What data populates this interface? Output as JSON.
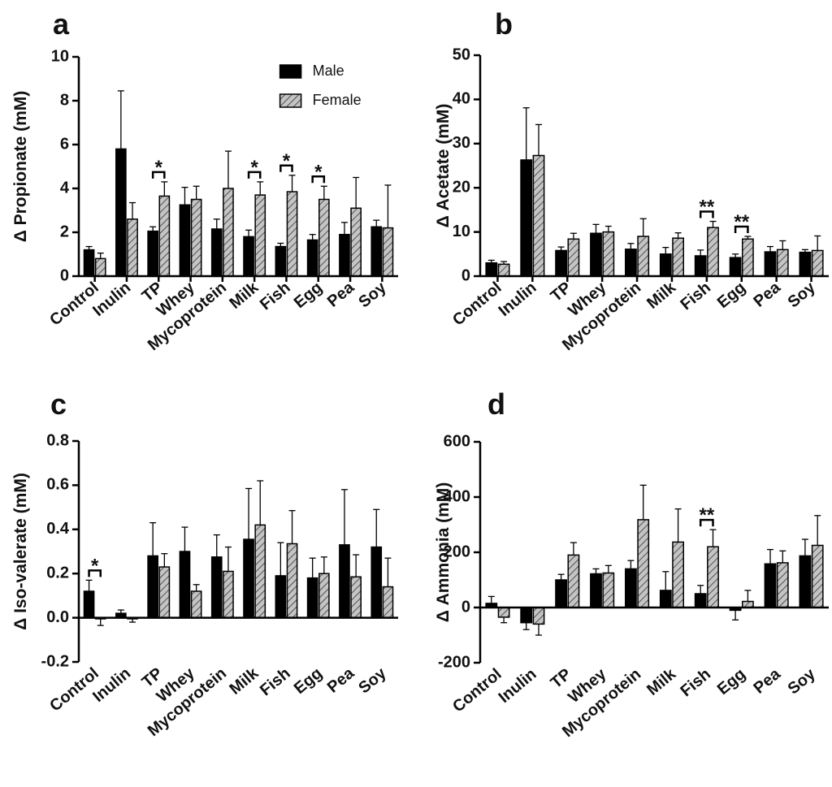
{
  "chart_data": [
    {
      "type": "bar",
      "title": "a",
      "y_label": "Δ Propionate (mM)",
      "categories": [
        "Control",
        "Inulin",
        "TP",
        "Whey",
        "Mycoprotein",
        "Milk",
        "Fish",
        "Egg",
        "Pea",
        "Soy"
      ],
      "series": [
        {
          "name": "Male",
          "color": "#000000",
          "values": [
            1.2,
            5.8,
            2.05,
            3.25,
            2.15,
            1.8,
            1.35,
            1.65,
            1.9,
            2.25
          ],
          "errors": [
            0.15,
            2.65,
            0.2,
            0.8,
            0.45,
            0.3,
            0.15,
            0.25,
            0.55,
            0.3
          ]
        },
        {
          "name": "Female",
          "color": "#b8b8b8",
          "hatch": true,
          "values": [
            0.8,
            2.6,
            3.65,
            3.5,
            4.0,
            3.7,
            3.85,
            3.5,
            3.1,
            2.2
          ],
          "errors": [
            0.25,
            0.75,
            0.65,
            0.6,
            1.7,
            0.6,
            0.75,
            0.6,
            1.4,
            1.95
          ]
        }
      ],
      "ylim": [
        0,
        10
      ],
      "yticks": [
        0,
        2,
        4,
        6,
        8,
        10
      ],
      "legend": "top",
      "annotations": [
        {
          "category": "TP",
          "label": "*"
        },
        {
          "category": "Milk",
          "label": "*"
        },
        {
          "category": "Fish",
          "label": "*"
        },
        {
          "category": "Egg",
          "label": "*"
        }
      ]
    },
    {
      "type": "bar",
      "title": "b",
      "y_label": "Δ Acetate (mM)",
      "categories": [
        "Control",
        "Inulin",
        "TP",
        "Whey",
        "Mycoprotein",
        "Milk",
        "Fish",
        "Egg",
        "Pea",
        "Soy"
      ],
      "series": [
        {
          "color": "#000000",
          "values": [
            3.0,
            26.3,
            5.8,
            9.7,
            6.1,
            5.0,
            4.6,
            4.2,
            5.5,
            5.4
          ],
          "errors": [
            0.6,
            11.8,
            0.8,
            2.0,
            1.3,
            1.5,
            1.3,
            0.8,
            1.2,
            0.6
          ]
        },
        {
          "color": "#b8b8b8",
          "hatch": true,
          "values": [
            2.7,
            27.3,
            8.4,
            10.0,
            9.0,
            8.6,
            11.0,
            8.4,
            6.0,
            5.8
          ],
          "errors": [
            0.6,
            7.0,
            1.3,
            1.3,
            4.0,
            1.2,
            1.4,
            0.6,
            2.0,
            3.3
          ]
        }
      ],
      "ylim": [
        0,
        50
      ],
      "yticks": [
        0,
        10,
        20,
        30,
        40,
        50
      ],
      "annotations": [
        {
          "category": "Fish",
          "label": "**"
        },
        {
          "category": "Egg",
          "label": "**"
        }
      ]
    },
    {
      "type": "bar",
      "title": "c",
      "y_label": "Δ Iso-valerate (mM)",
      "categories": [
        "Control",
        "Inulin",
        "TP",
        "Whey",
        "Mycoprotein",
        "Milk",
        "Fish",
        "Egg",
        "Pea",
        "Soy"
      ],
      "series": [
        {
          "color": "#000000",
          "values": [
            0.12,
            0.02,
            0.28,
            0.3,
            0.275,
            0.355,
            0.19,
            0.18,
            0.33,
            0.32
          ],
          "errors": [
            0.05,
            0.015,
            0.15,
            0.11,
            0.1,
            0.23,
            0.15,
            0.09,
            0.25,
            0.17
          ]
        },
        {
          "color": "#b8b8b8",
          "hatch": true,
          "values": [
            -0.005,
            -0.005,
            0.23,
            0.12,
            0.21,
            0.42,
            0.335,
            0.2,
            0.185,
            0.14
          ],
          "errors": [
            0.03,
            0.015,
            0.06,
            0.03,
            0.11,
            0.2,
            0.15,
            0.075,
            0.1,
            0.13
          ]
        }
      ],
      "ylim": [
        -0.2,
        0.8
      ],
      "yticks": [
        {
          "value": -0.2,
          "label": "-0.2"
        },
        {
          "value": 0,
          "label": "0.0"
        },
        0.2,
        0.4,
        0.6,
        0.8
      ],
      "annotations": [
        {
          "category": "Control",
          "label": "*"
        }
      ]
    },
    {
      "type": "bar",
      "title": "d",
      "y_label": "Δ Ammonia (mM)",
      "categories": [
        "Control",
        "Inulin",
        "TP",
        "Whey",
        "Mycoprotein",
        "Milk",
        "Fish",
        "Egg",
        "Pea",
        "Soy"
      ],
      "series": [
        {
          "color": "#000000",
          "values": [
            15,
            -55,
            100,
            122,
            140,
            62,
            50,
            -10,
            158,
            187
          ],
          "errors": [
            25,
            25,
            20,
            18,
            30,
            68,
            30,
            35,
            52,
            60
          ]
        },
        {
          "color": "#b8b8b8",
          "hatch": true,
          "values": [
            -35,
            -60,
            190,
            125,
            318,
            237,
            220,
            22,
            162,
            225
          ],
          "errors": [
            20,
            40,
            45,
            27,
            125,
            120,
            62,
            40,
            43,
            108
          ]
        }
      ],
      "ylim": [
        -200,
        600
      ],
      "yticks": [
        -200,
        0,
        200,
        400,
        600
      ],
      "annotations": [
        {
          "category": "Fish",
          "label": "**"
        }
      ]
    }
  ]
}
